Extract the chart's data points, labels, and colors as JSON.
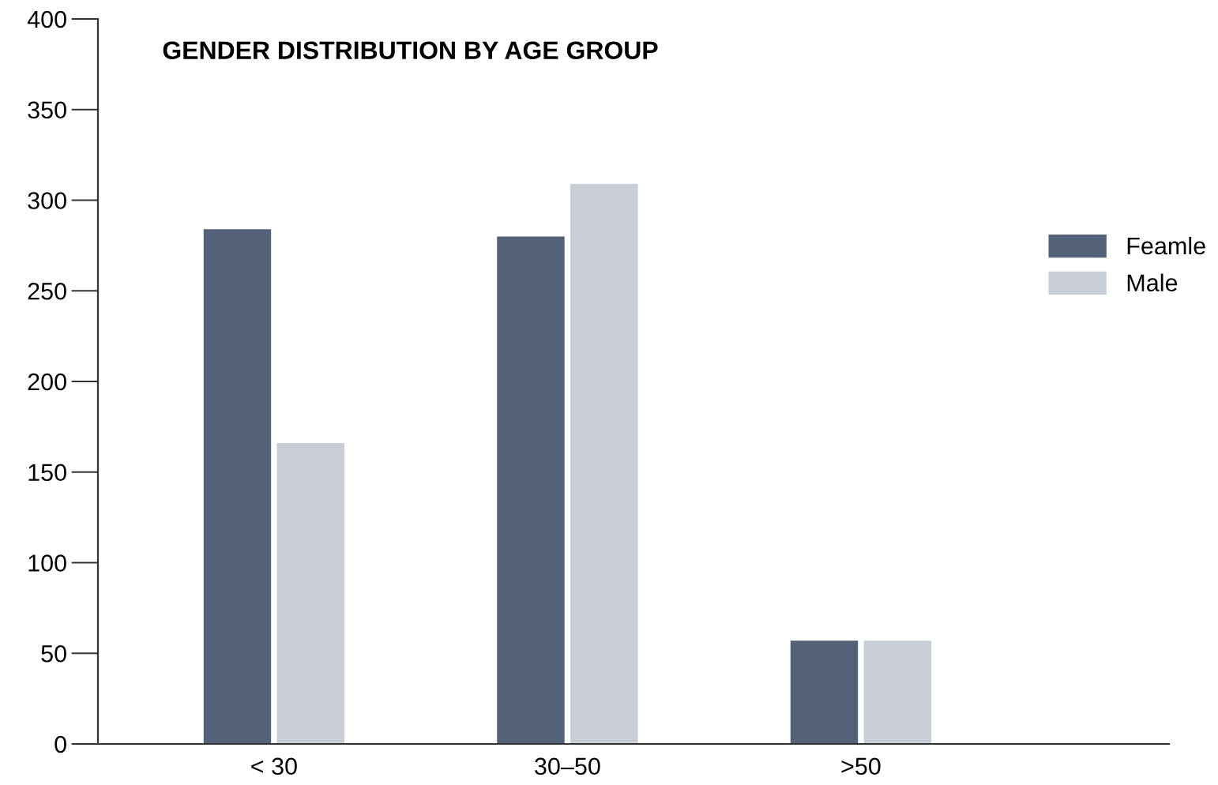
{
  "chart_data": {
    "type": "bar",
    "title": "GENDER DISTRIBUTION BY AGE GROUP",
    "categories": [
      "< 30",
      "30–50",
      ">50"
    ],
    "series": [
      {
        "name": "Feamle",
        "color": "#536278",
        "values": [
          284,
          280,
          57
        ]
      },
      {
        "name": "Male",
        "color": "#c9ced6",
        "values": [
          166,
          309,
          57
        ]
      }
    ],
    "ylim": [
      0,
      400
    ],
    "yticks": [
      0,
      50,
      100,
      150,
      200,
      250,
      300,
      350,
      400
    ],
    "grid": false,
    "legend": "right"
  }
}
